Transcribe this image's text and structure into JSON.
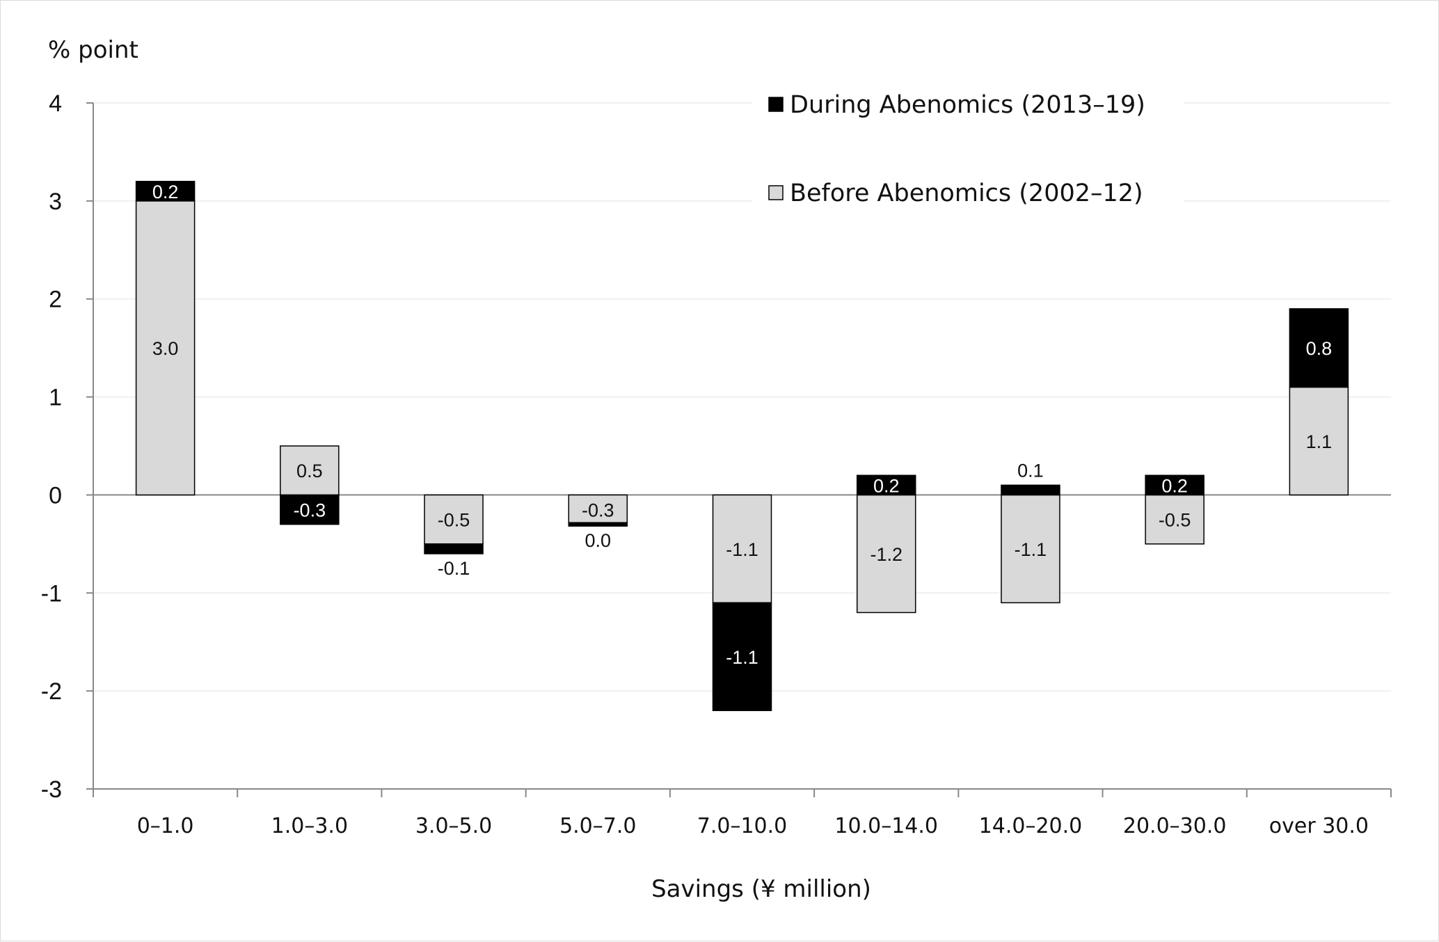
{
  "chart_data": {
    "type": "bar",
    "stacked": true,
    "ylabel": "% point",
    "xlabel": "Savings (¥ million)",
    "ylim": [
      -3,
      4
    ],
    "yticks": [
      4,
      3,
      2,
      1,
      0,
      -1,
      -2,
      -3
    ],
    "grid": true,
    "legend_position": "top-right",
    "categories": [
      "0–1.0",
      "1.0–3.0",
      "3.0–5.0",
      "5.0–7.0",
      "7.0–10.0",
      "10.0–14.0",
      "14.0–20.0",
      "20.0–30.0",
      "over 30.0"
    ],
    "series": [
      {
        "name": "Before Abenomics (2002–12)",
        "color": "#d9d9d9",
        "values": [
          3.0,
          0.5,
          -0.5,
          -0.3,
          -1.1,
          -1.2,
          -1.1,
          -0.5,
          1.1
        ]
      },
      {
        "name": "During Abenomics (2013–19)",
        "color": "#000000",
        "values": [
          0.2,
          -0.3,
          -0.1,
          0.0,
          -1.1,
          0.2,
          0.1,
          0.2,
          0.8
        ]
      }
    ]
  }
}
